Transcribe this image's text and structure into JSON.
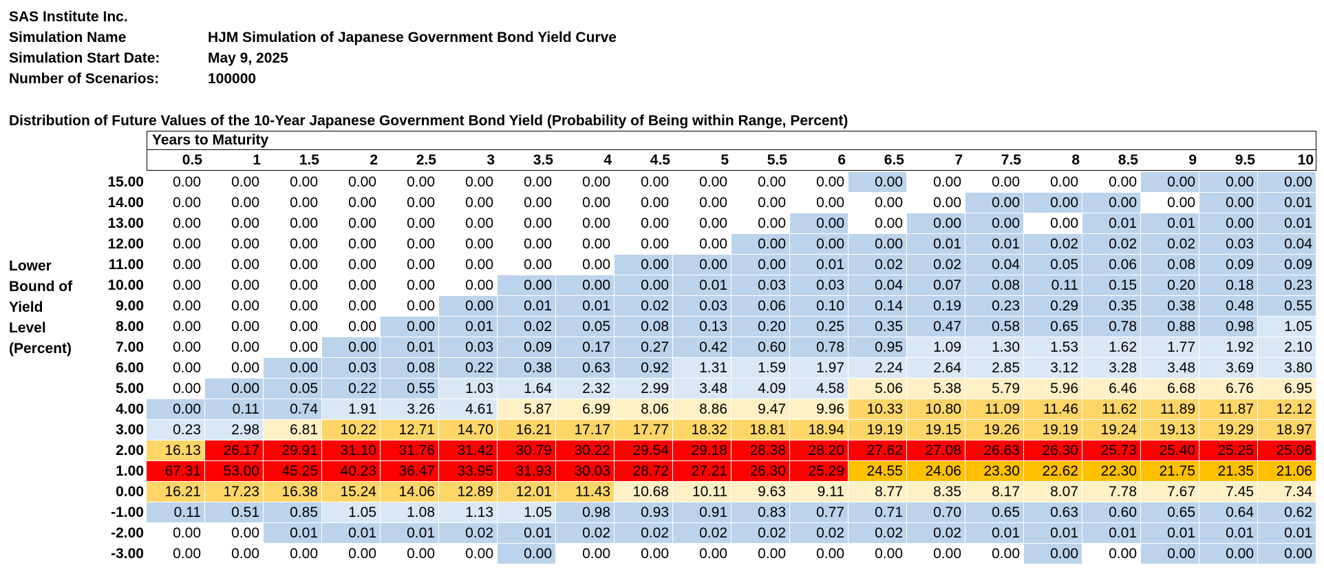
{
  "header": {
    "company": "SAS Institute Inc.",
    "simulation_name_label": "Simulation Name",
    "simulation_name": "HJM Simulation of Japanese Government Bond Yield Curve",
    "start_date_label": "Simulation Start Date:",
    "start_date": "May 9, 2025",
    "scenarios_label": "Number of Scenarios:",
    "scenarios": "100000"
  },
  "table": {
    "title": "Distribution of Future Values of the 10-Year Japanese Government Bond Yield (Probability of Being within Range, Percent)",
    "column_group_label": "Years to Maturity",
    "row_axis_label": [
      "Lower",
      "Bound of",
      "Yield",
      "Level",
      "(Percent)"
    ],
    "maturities": [
      "0.5",
      "1",
      "1.5",
      "2",
      "2.5",
      "3",
      "3.5",
      "4",
      "4.5",
      "5",
      "5.5",
      "6",
      "6.5",
      "7",
      "7.5",
      "8",
      "8.5",
      "9",
      "9.5",
      "10"
    ],
    "rows": [
      {
        "bound": "15.00",
        "values": [
          "0.00",
          "0.00",
          "0.00",
          "0.00",
          "0.00",
          "0.00",
          "0.00",
          "0.00",
          "0.00",
          "0.00",
          "0.00",
          "0.00",
          "0.00",
          "0.00",
          "0.00",
          "0.00",
          "0.00",
          "0.00",
          "0.00",
          "0.00"
        ],
        "shade": [
          0,
          0,
          0,
          0,
          0,
          0,
          0,
          0,
          0,
          0,
          0,
          0,
          1,
          0,
          0,
          0,
          0,
          1,
          1,
          1
        ]
      },
      {
        "bound": "14.00",
        "values": [
          "0.00",
          "0.00",
          "0.00",
          "0.00",
          "0.00",
          "0.00",
          "0.00",
          "0.00",
          "0.00",
          "0.00",
          "0.00",
          "0.00",
          "0.00",
          "0.00",
          "0.00",
          "0.00",
          "0.00",
          "0.00",
          "0.00",
          "0.01"
        ],
        "shade": [
          0,
          0,
          0,
          0,
          0,
          0,
          0,
          0,
          0,
          0,
          0,
          0,
          0,
          0,
          1,
          1,
          1,
          0,
          1,
          1
        ]
      },
      {
        "bound": "13.00",
        "values": [
          "0.00",
          "0.00",
          "0.00",
          "0.00",
          "0.00",
          "0.00",
          "0.00",
          "0.00",
          "0.00",
          "0.00",
          "0.00",
          "0.00",
          "0.00",
          "0.00",
          "0.00",
          "0.00",
          "0.01",
          "0.01",
          "0.00",
          "0.01"
        ],
        "shade": [
          0,
          0,
          0,
          0,
          0,
          0,
          0,
          0,
          0,
          0,
          0,
          1,
          0,
          1,
          1,
          0,
          1,
          1,
          1,
          1
        ]
      },
      {
        "bound": "12.00",
        "values": [
          "0.00",
          "0.00",
          "0.00",
          "0.00",
          "0.00",
          "0.00",
          "0.00",
          "0.00",
          "0.00",
          "0.00",
          "0.00",
          "0.00",
          "0.00",
          "0.01",
          "0.01",
          "0.02",
          "0.02",
          "0.02",
          "0.03",
          "0.04"
        ],
        "shade": [
          0,
          0,
          0,
          0,
          0,
          0,
          0,
          0,
          0,
          0,
          1,
          1,
          1,
          1,
          1,
          1,
          1,
          1,
          1,
          1
        ]
      },
      {
        "bound": "11.00",
        "values": [
          "0.00",
          "0.00",
          "0.00",
          "0.00",
          "0.00",
          "0.00",
          "0.00",
          "0.00",
          "0.00",
          "0.00",
          "0.00",
          "0.01",
          "0.02",
          "0.02",
          "0.04",
          "0.05",
          "0.06",
          "0.08",
          "0.09",
          "0.09"
        ],
        "shade": [
          0,
          0,
          0,
          0,
          0,
          0,
          0,
          0,
          1,
          1,
          1,
          1,
          1,
          1,
          1,
          1,
          1,
          1,
          1,
          1
        ]
      },
      {
        "bound": "10.00",
        "values": [
          "0.00",
          "0.00",
          "0.00",
          "0.00",
          "0.00",
          "0.00",
          "0.00",
          "0.00",
          "0.00",
          "0.01",
          "0.03",
          "0.03",
          "0.04",
          "0.07",
          "0.08",
          "0.11",
          "0.15",
          "0.20",
          "0.18",
          "0.23"
        ],
        "shade": [
          0,
          0,
          0,
          0,
          0,
          0,
          1,
          1,
          1,
          1,
          1,
          1,
          1,
          1,
          1,
          1,
          1,
          1,
          1,
          1
        ]
      },
      {
        "bound": "9.00",
        "values": [
          "0.00",
          "0.00",
          "0.00",
          "0.00",
          "0.00",
          "0.00",
          "0.01",
          "0.01",
          "0.02",
          "0.03",
          "0.06",
          "0.10",
          "0.14",
          "0.19",
          "0.23",
          "0.29",
          "0.35",
          "0.38",
          "0.48",
          "0.55"
        ],
        "shade": [
          0,
          0,
          0,
          0,
          0,
          1,
          1,
          1,
          1,
          1,
          1,
          1,
          1,
          1,
          1,
          1,
          1,
          1,
          1,
          1
        ]
      },
      {
        "bound": "8.00",
        "values": [
          "0.00",
          "0.00",
          "0.00",
          "0.00",
          "0.00",
          "0.01",
          "0.02",
          "0.05",
          "0.08",
          "0.13",
          "0.20",
          "0.25",
          "0.35",
          "0.47",
          "0.58",
          "0.65",
          "0.78",
          "0.88",
          "0.98",
          "1.05"
        ],
        "shade": [
          0,
          0,
          0,
          0,
          1,
          1,
          1,
          1,
          1,
          1,
          1,
          1,
          1,
          1,
          1,
          1,
          1,
          1,
          1,
          2
        ]
      },
      {
        "bound": "7.00",
        "values": [
          "0.00",
          "0.00",
          "0.00",
          "0.00",
          "0.01",
          "0.03",
          "0.09",
          "0.17",
          "0.27",
          "0.42",
          "0.60",
          "0.78",
          "0.95",
          "1.09",
          "1.30",
          "1.53",
          "1.62",
          "1.77",
          "1.92",
          "2.10"
        ],
        "shade": [
          0,
          0,
          0,
          1,
          1,
          1,
          1,
          1,
          1,
          1,
          1,
          1,
          1,
          2,
          2,
          2,
          2,
          2,
          2,
          2
        ]
      },
      {
        "bound": "6.00",
        "values": [
          "0.00",
          "0.00",
          "0.00",
          "0.03",
          "0.08",
          "0.22",
          "0.38",
          "0.63",
          "0.92",
          "1.31",
          "1.59",
          "1.97",
          "2.24",
          "2.64",
          "2.85",
          "3.12",
          "3.28",
          "3.48",
          "3.69",
          "3.80"
        ],
        "shade": [
          0,
          0,
          1,
          1,
          1,
          1,
          1,
          1,
          1,
          2,
          2,
          2,
          2,
          2,
          2,
          2,
          2,
          2,
          2,
          2
        ]
      },
      {
        "bound": "5.00",
        "values": [
          "0.00",
          "0.00",
          "0.05",
          "0.22",
          "0.55",
          "1.03",
          "1.64",
          "2.32",
          "2.99",
          "3.48",
          "4.09",
          "4.58",
          "5.06",
          "5.38",
          "5.79",
          "5.96",
          "6.46",
          "6.68",
          "6.76",
          "6.95"
        ],
        "shade": [
          0,
          1,
          1,
          1,
          1,
          2,
          2,
          2,
          2,
          2,
          2,
          2,
          3,
          3,
          3,
          3,
          3,
          3,
          3,
          3
        ]
      },
      {
        "bound": "4.00",
        "values": [
          "0.00",
          "0.11",
          "0.74",
          "1.91",
          "3.26",
          "4.61",
          "5.87",
          "6.99",
          "8.06",
          "8.86",
          "9.47",
          "9.96",
          "10.33",
          "10.80",
          "11.09",
          "11.46",
          "11.62",
          "11.89",
          "11.87",
          "12.12"
        ],
        "shade": [
          1,
          1,
          1,
          2,
          2,
          2,
          3,
          3,
          3,
          3,
          3,
          3,
          4,
          4,
          4,
          4,
          4,
          4,
          4,
          4
        ]
      },
      {
        "bound": "3.00",
        "values": [
          "0.23",
          "2.98",
          "6.81",
          "10.22",
          "12.71",
          "14.70",
          "16.21",
          "17.17",
          "17.77",
          "18.32",
          "18.81",
          "18.94",
          "19.19",
          "19.15",
          "19.26",
          "19.19",
          "19.24",
          "19.13",
          "19.29",
          "18.97"
        ],
        "shade": [
          2,
          2,
          3,
          4,
          4,
          4,
          4,
          4,
          4,
          4,
          4,
          4,
          4,
          4,
          4,
          4,
          4,
          4,
          4,
          4
        ]
      },
      {
        "bound": "2.00",
        "values": [
          "16.13",
          "26.17",
          "29.91",
          "31.10",
          "31.76",
          "31.42",
          "30.79",
          "30.22",
          "29.54",
          "29.18",
          "28.38",
          "28.20",
          "27.62",
          "27.08",
          "26.63",
          "26.30",
          "25.73",
          "25.40",
          "25.25",
          "25.06"
        ],
        "shade": [
          4,
          6,
          6,
          6,
          6,
          6,
          6,
          6,
          6,
          6,
          6,
          6,
          6,
          6,
          6,
          6,
          6,
          6,
          6,
          6
        ]
      },
      {
        "bound": "1.00",
        "values": [
          "67.31",
          "53.00",
          "45.25",
          "40.23",
          "36.47",
          "33.95",
          "31.93",
          "30.03",
          "28.72",
          "27.21",
          "26.30",
          "25.29",
          "24.55",
          "24.06",
          "23.30",
          "22.62",
          "22.30",
          "21.75",
          "21.35",
          "21.06"
        ],
        "shade": [
          6,
          6,
          6,
          6,
          6,
          6,
          6,
          6,
          6,
          6,
          6,
          6,
          5,
          5,
          5,
          5,
          5,
          5,
          5,
          5
        ]
      },
      {
        "bound": "0.00",
        "values": [
          "16.21",
          "17.23",
          "16.38",
          "15.24",
          "14.06",
          "12.89",
          "12.01",
          "11.43",
          "10.68",
          "10.11",
          "9.63",
          "9.11",
          "8.77",
          "8.35",
          "8.17",
          "8.07",
          "7.78",
          "7.67",
          "7.45",
          "7.34"
        ],
        "shade": [
          4,
          4,
          4,
          4,
          4,
          4,
          4,
          4,
          3,
          3,
          3,
          3,
          3,
          3,
          3,
          3,
          3,
          3,
          3,
          3
        ]
      },
      {
        "bound": "-1.00",
        "values": [
          "0.11",
          "0.51",
          "0.85",
          "1.05",
          "1.08",
          "1.13",
          "1.05",
          "0.98",
          "0.93",
          "0.91",
          "0.83",
          "0.77",
          "0.71",
          "0.70",
          "0.65",
          "0.63",
          "0.60",
          "0.65",
          "0.64",
          "0.62"
        ],
        "shade": [
          1,
          1,
          1,
          2,
          2,
          2,
          2,
          1,
          1,
          1,
          1,
          1,
          1,
          1,
          1,
          1,
          1,
          1,
          1,
          1
        ]
      },
      {
        "bound": "-2.00",
        "values": [
          "0.00",
          "0.00",
          "0.01",
          "0.01",
          "0.01",
          "0.02",
          "0.01",
          "0.02",
          "0.02",
          "0.02",
          "0.02",
          "0.02",
          "0.02",
          "0.02",
          "0.01",
          "0.01",
          "0.01",
          "0.01",
          "0.01",
          "0.01"
        ],
        "shade": [
          0,
          0,
          1,
          1,
          1,
          1,
          1,
          1,
          1,
          1,
          1,
          1,
          1,
          1,
          1,
          1,
          1,
          1,
          1,
          1
        ]
      },
      {
        "bound": "-3.00",
        "values": [
          "0.00",
          "0.00",
          "0.00",
          "0.00",
          "0.00",
          "0.00",
          "0.00",
          "0.00",
          "0.00",
          "0.00",
          "0.00",
          "0.00",
          "0.00",
          "0.00",
          "0.00",
          "0.00",
          "0.00",
          "0.00",
          "0.00",
          "0.00"
        ],
        "shade": [
          0,
          0,
          0,
          0,
          0,
          0,
          1,
          0,
          0,
          0,
          0,
          0,
          0,
          0,
          0,
          1,
          0,
          1,
          1,
          1
        ]
      }
    ]
  }
}
